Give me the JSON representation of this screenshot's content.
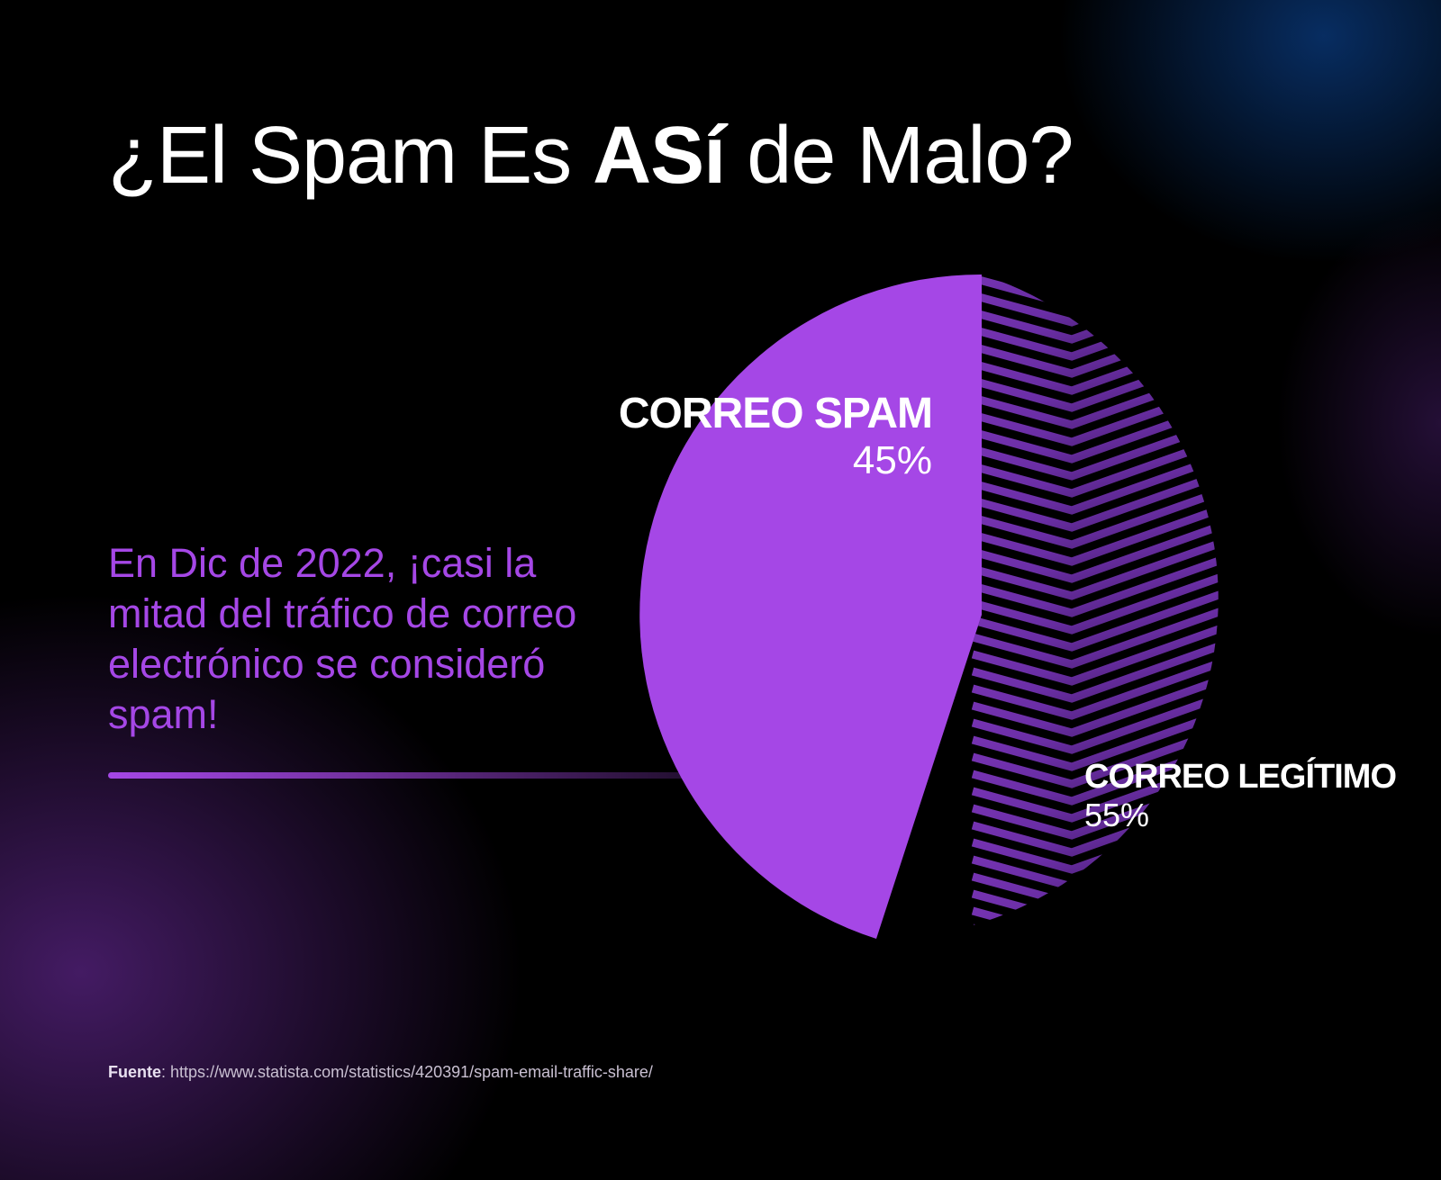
{
  "title": {
    "prefix": "¿El Spam Es ",
    "bold": "ASí",
    "suffix": " de Malo?"
  },
  "description": "En Dic de 2022, ¡casi la mitad del tráfico de correo electrónico se consideró spam!",
  "source": {
    "label": "Fuente",
    "url": ": https://www.statista.com/statistics/420391/spam-email-traffic-share/"
  },
  "labels": {
    "spam": {
      "name": "CORREO SPAM",
      "pct": "45%"
    },
    "legit": {
      "name": "CORREO LEGÍTIMO",
      "pct": "55%"
    }
  },
  "colors": {
    "spam": "#a547e6",
    "legit_stripes": "#7b36b8",
    "background": "#000000"
  },
  "chart_data": {
    "type": "pie",
    "title": "¿El Spam Es ASí de Malo?",
    "categories": [
      "Correo Spam",
      "Correo Legítimo"
    ],
    "values": [
      45,
      55
    ],
    "unit": "%",
    "annotation": "En Dic de 2022, ¡casi la mitad del tráfico de correo electrónico se consideró spam!",
    "source": "https://www.statista.com/statistics/420391/spam-email-traffic-share/"
  }
}
